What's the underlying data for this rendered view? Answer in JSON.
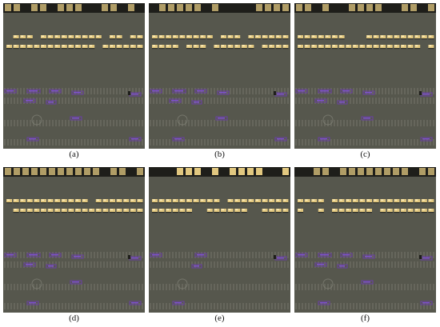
{
  "panels": [
    {
      "id": "a",
      "label": "(a)",
      "variant": 0
    },
    {
      "id": "b",
      "label": "(b)",
      "variant": 1
    },
    {
      "id": "c",
      "label": "(c)",
      "variant": 2
    },
    {
      "id": "d",
      "label": "(d)",
      "variant": 3
    },
    {
      "id": "e",
      "label": "(e)",
      "variant": 4
    },
    {
      "id": "f",
      "label": "(f)",
      "variant": 5
    }
  ],
  "colors": {
    "asphalt": "#56574d",
    "asphalt_dark": "#4a4b42",
    "bus_yellow": "#e2c880",
    "bus_highlight": "#fff0c0",
    "shadow": "#1e1e1a",
    "lane_line": "#c8c8b8",
    "detection_box": "#6b3fa6",
    "marker": "#7e4fd0"
  }
}
